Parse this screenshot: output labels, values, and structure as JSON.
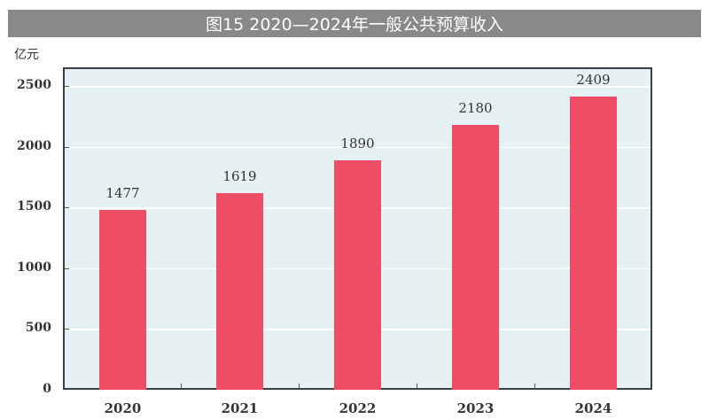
{
  "title": "图15  2020—2024年一般公共预算收入",
  "unit": "亿元",
  "chart_data": {
    "type": "bar",
    "title": "图15  2020—2024年一般公共预算收入",
    "xlabel": "",
    "ylabel": "亿元",
    "categories": [
      "2020",
      "2021",
      "2022",
      "2023",
      "2024"
    ],
    "values": [
      1477,
      1619,
      1890,
      2180,
      2409
    ],
    "data_labels": [
      "1477",
      "1619",
      "1890",
      "2180",
      "2409"
    ],
    "yticks": [
      "0",
      "500",
      "1000",
      "1500",
      "2000",
      "2500"
    ],
    "ylim": [
      0,
      2650
    ],
    "grid": true,
    "legend": null,
    "bar_color": "#ef4d65",
    "plot_background": "#e6f1f3"
  }
}
